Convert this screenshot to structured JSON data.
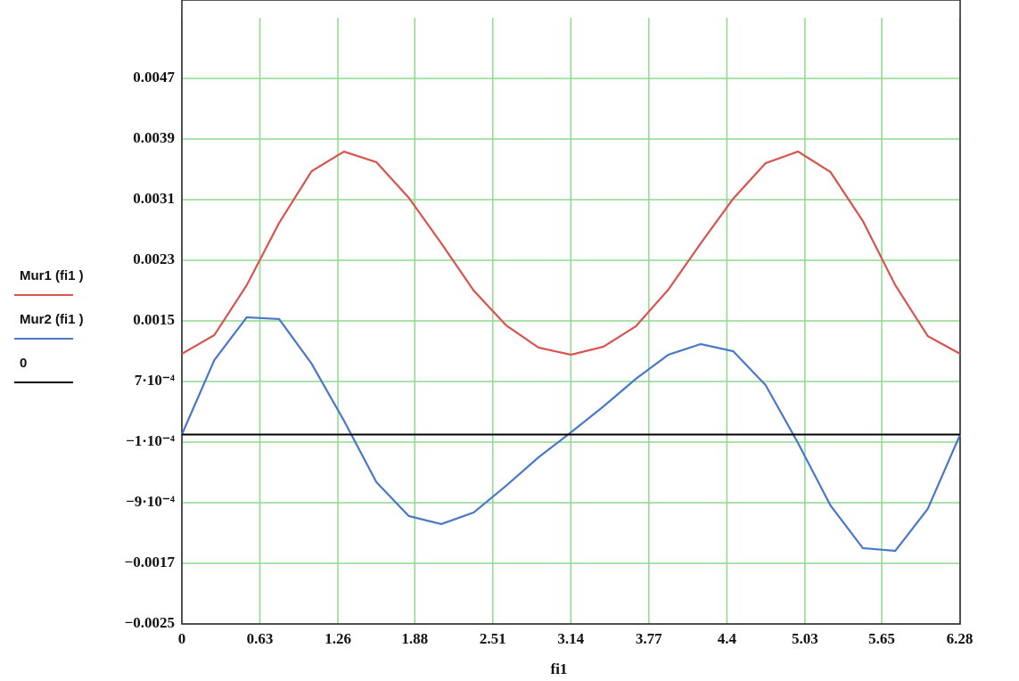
{
  "chart_data": {
    "type": "line",
    "x_label": "fi1",
    "x": [
      0,
      0.2618,
      0.5236,
      0.7854,
      1.0472,
      1.309,
      1.5708,
      1.8326,
      2.0944,
      2.3562,
      2.618,
      2.8798,
      3.1416,
      3.4034,
      3.6652,
      3.927,
      4.1888,
      4.4506,
      4.7124,
      4.9742,
      5.236,
      5.4978,
      5.7596,
      6.0214,
      6.2832
    ],
    "series": [
      {
        "name": "Mur1 (fi1 )",
        "color": "#d9534f",
        "values": [
          0.001065,
          0.001312,
          0.001971,
          0.002794,
          0.003476,
          0.003735,
          0.003594,
          0.003124,
          0.002524,
          0.0019,
          0.001441,
          0.001147,
          0.001053,
          0.001159,
          0.001429,
          0.001912,
          0.002524,
          0.003112,
          0.003582,
          0.003735,
          0.003465,
          0.002818,
          0.001971,
          0.0013,
          0.001065
        ]
      },
      {
        "name": "Mur2 (fi1 )",
        "color": "#4a78c8",
        "values": [
          0,
          0.000982,
          0.001547,
          0.001524,
          0.000935,
          0.000182,
          -0.000629,
          -0.001076,
          -0.001182,
          -0.001029,
          -0.000676,
          -0.0003,
          2.9e-05,
          0.000371,
          0.000735,
          0.001053,
          0.001194,
          0.0011,
          0.000653,
          -0.000112,
          -0.000935,
          -0.0015,
          -0.001535,
          -0.000982,
          0
        ]
      },
      {
        "name": "0",
        "color": "#000000",
        "values": [
          0,
          0,
          0,
          0,
          0,
          0,
          0,
          0,
          0,
          0,
          0,
          0,
          0,
          0,
          0,
          0,
          0,
          0,
          0,
          0,
          0,
          0,
          0,
          0,
          0
        ]
      }
    ],
    "xlim": [
      0,
      6.2832
    ],
    "xticks": [
      0,
      0.63,
      1.26,
      1.88,
      2.51,
      3.14,
      3.77,
      4.4,
      5.03,
      5.65,
      6.28
    ],
    "ylim": [
      -0.0025,
      0.0055
    ],
    "yticks": [
      {
        "value": -0.0025,
        "label": "−0.0025"
      },
      {
        "value": -0.0017,
        "label": "−0.0017"
      },
      {
        "value": -0.0009,
        "label": "−9·10⁻⁴"
      },
      {
        "value": -0.0001,
        "label": "−1·10⁻⁴"
      },
      {
        "value": 0.0007,
        "label": "7·10⁻⁴"
      },
      0.0015,
      0.0023,
      0.0031,
      0.0039,
      0.0047
    ],
    "grid": true,
    "grid_color": "#8fd98f",
    "legend": "left"
  }
}
